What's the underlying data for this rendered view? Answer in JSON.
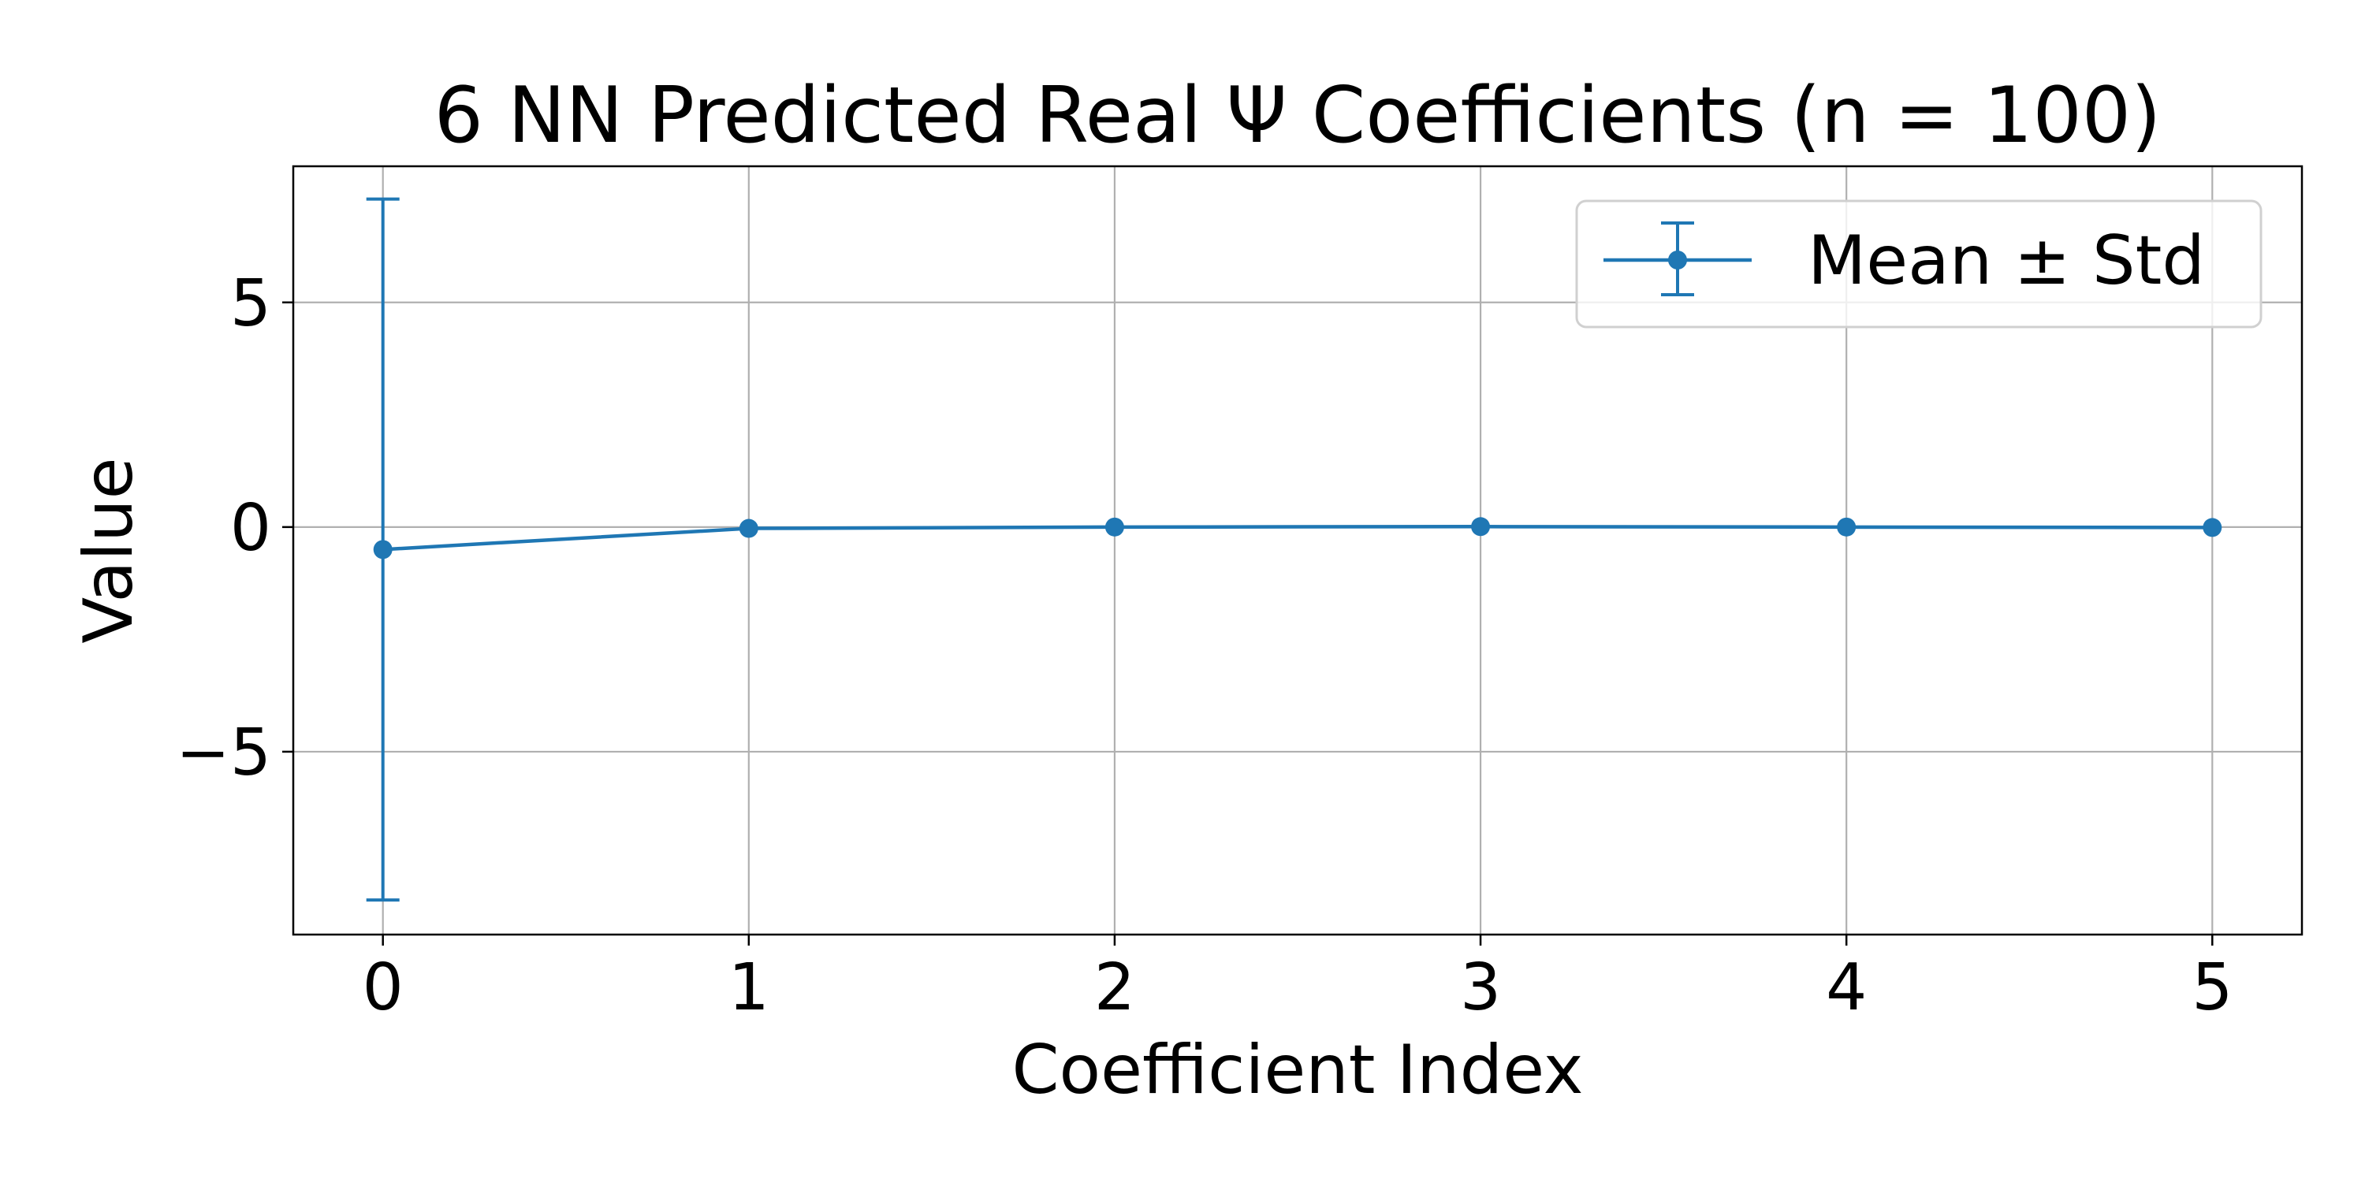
{
  "chart_data": {
    "type": "line",
    "title": "6 NN Predicted Real Ψ Coefficients (n = 100)",
    "xlabel": "Coefficient Index",
    "ylabel": "Value",
    "x": [
      0,
      1,
      2,
      3,
      4,
      5
    ],
    "series": [
      {
        "name": "Mean ± Std",
        "mean": [
          -0.5,
          -0.03,
          0.0,
          0.01,
          0.0,
          -0.01
        ],
        "std": [
          7.8,
          0.0,
          0.0,
          0.0,
          0.0,
          0.0
        ],
        "color": "#1f77b4",
        "marker": "circle",
        "errorbars": true
      }
    ],
    "xlim": [
      -0.245,
      5.245
    ],
    "ylim": [
      -9.07,
      8.03
    ],
    "x_ticks": [
      0,
      1,
      2,
      3,
      4,
      5
    ],
    "x_tick_labels": [
      "0",
      "1",
      "2",
      "3",
      "4",
      "5"
    ],
    "y_ticks": [
      -5,
      0,
      5
    ],
    "y_tick_labels": [
      "−5",
      "0",
      "5"
    ],
    "grid": true,
    "legend": {
      "position": "upper right",
      "entries": [
        "Mean ± Std"
      ]
    }
  }
}
